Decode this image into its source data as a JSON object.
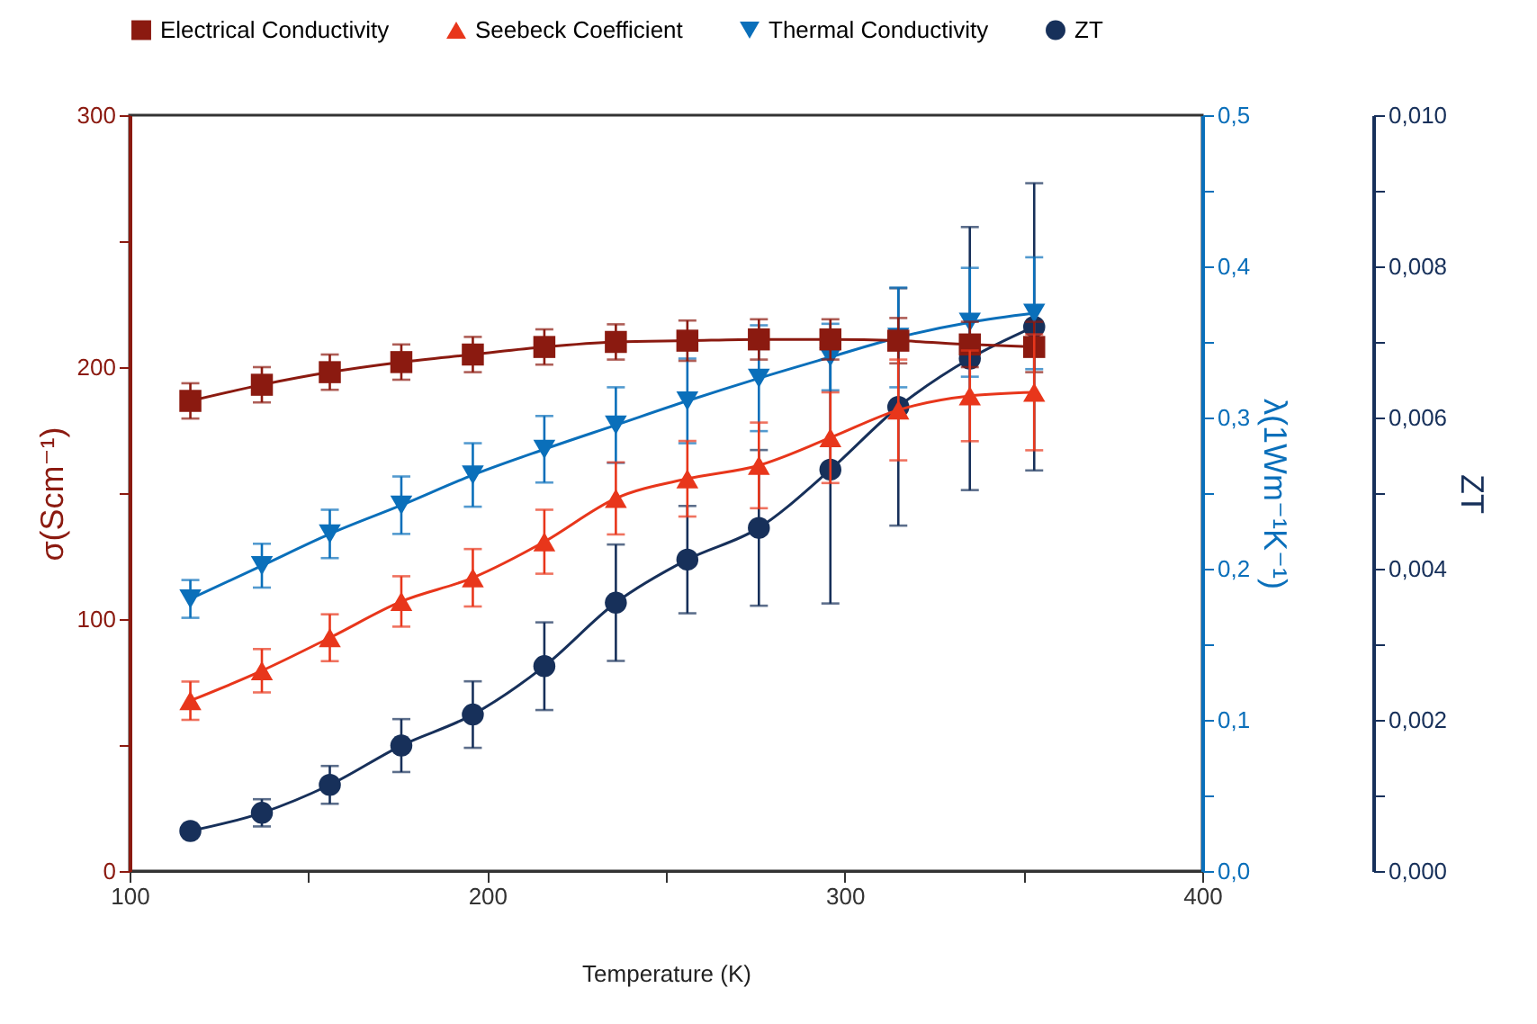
{
  "chart_data": {
    "type": "line",
    "xlabel": "Temperature (K)",
    "ylabel": "σ(Scm⁻¹)",
    "y2label": "λ(1Wm⁻¹K⁻¹)",
    "y3label": "ZT",
    "x": [
      117,
      137,
      156,
      176,
      196,
      216,
      236,
      256,
      276,
      296,
      315,
      335,
      353
    ],
    "xlim": [
      100,
      400
    ],
    "xticks": [
      100,
      {
        "value": 150,
        "label": null
      },
      200,
      {
        "value": 250,
        "label": null
      },
      300,
      {
        "value": 350,
        "label": null
      },
      400
    ],
    "ylim": [
      0,
      300
    ],
    "yticks": [
      0,
      {
        "value": 50,
        "label": null
      },
      100,
      {
        "value": 150,
        "label": null
      },
      200,
      {
        "value": 250,
        "label": null
      },
      300
    ],
    "y2lim": [
      0,
      0.5
    ],
    "y2ticks": [
      {
        "value": 0,
        "label": "0,0"
      },
      {
        "value": 0.05,
        "label": null
      },
      {
        "value": 0.1,
        "label": "0,1"
      },
      {
        "value": 0.15,
        "label": null
      },
      {
        "value": 0.2,
        "label": "0,2"
      },
      {
        "value": 0.25,
        "label": null
      },
      {
        "value": 0.3,
        "label": "0,3"
      },
      {
        "value": 0.35,
        "label": null
      },
      {
        "value": 0.4,
        "label": "0,4"
      },
      {
        "value": 0.45,
        "label": null
      },
      {
        "value": 0.5,
        "label": "0,5"
      }
    ],
    "y3lim": [
      0,
      0.01
    ],
    "y3ticks": [
      {
        "value": 0,
        "label": "0,000"
      },
      {
        "value": 0.001,
        "label": null
      },
      {
        "value": 0.002,
        "label": "0,002"
      },
      {
        "value": 0.003,
        "label": null
      },
      {
        "value": 0.004,
        "label": "0,004"
      },
      {
        "value": 0.005,
        "label": null
      },
      {
        "value": 0.006,
        "label": "0,006"
      },
      {
        "value": 0.007,
        "label": null
      },
      {
        "value": 0.008,
        "label": "0,008"
      },
      {
        "value": 0.009,
        "label": null
      },
      {
        "value": 0.01,
        "label": "0,010"
      }
    ],
    "legend": "top",
    "grid": false,
    "series": [
      {
        "name": "Electrical Conductivity",
        "color": "#8b1a10",
        "marker": "square",
        "axis": "y",
        "values": [
          186.6,
          193,
          198,
          202,
          205,
          208,
          210,
          210.5,
          211,
          211,
          210.5,
          209,
          208
        ],
        "errors": [
          7,
          7,
          7,
          7,
          7,
          7,
          7,
          8,
          8,
          8,
          9,
          9,
          10
        ]
      },
      {
        "name": "Seebeck Coefficient",
        "color": "#e8361b",
        "marker": "triangle-up",
        "axis": "y",
        "values": [
          67.6,
          79.5,
          92.6,
          107,
          116.4,
          130.7,
          147.9,
          155.7,
          161,
          172,
          183,
          188.6,
          190
        ],
        "errors": [
          7.6,
          8.6,
          9.3,
          10,
          11.4,
          12.7,
          14.3,
          15,
          17,
          18,
          20,
          18,
          23
        ]
      },
      {
        "name": "Thermal Conductivity",
        "color": "#0a6fba",
        "marker": "triangle-down",
        "axis": "y2",
        "values": [
          0.18,
          0.202,
          0.223,
          0.242,
          0.262,
          0.279,
          0.295,
          0.311,
          0.326,
          0.34,
          0.353,
          0.363,
          0.369
        ],
        "errors": [
          0.0125,
          0.0145,
          0.016,
          0.019,
          0.021,
          0.022,
          0.025,
          0.028,
          0.035,
          0.022,
          0.033,
          0.036,
          0.037
        ]
      },
      {
        "name": "ZT",
        "color": "#17305a",
        "marker": "circle",
        "axis": "y3",
        "values": [
          0.00053,
          0.00077,
          0.00114,
          0.00166,
          0.00207,
          0.00271,
          0.00355,
          0.00412,
          0.00454,
          0.00531,
          0.00614,
          0.00678,
          0.0072
        ],
        "errors": [
          null,
          0.00018,
          0.00025,
          0.00035,
          0.00044,
          0.00058,
          0.00077,
          0.00071,
          0.00103,
          0.00177,
          0.00157,
          0.00174,
          0.0019
        ]
      }
    ]
  }
}
